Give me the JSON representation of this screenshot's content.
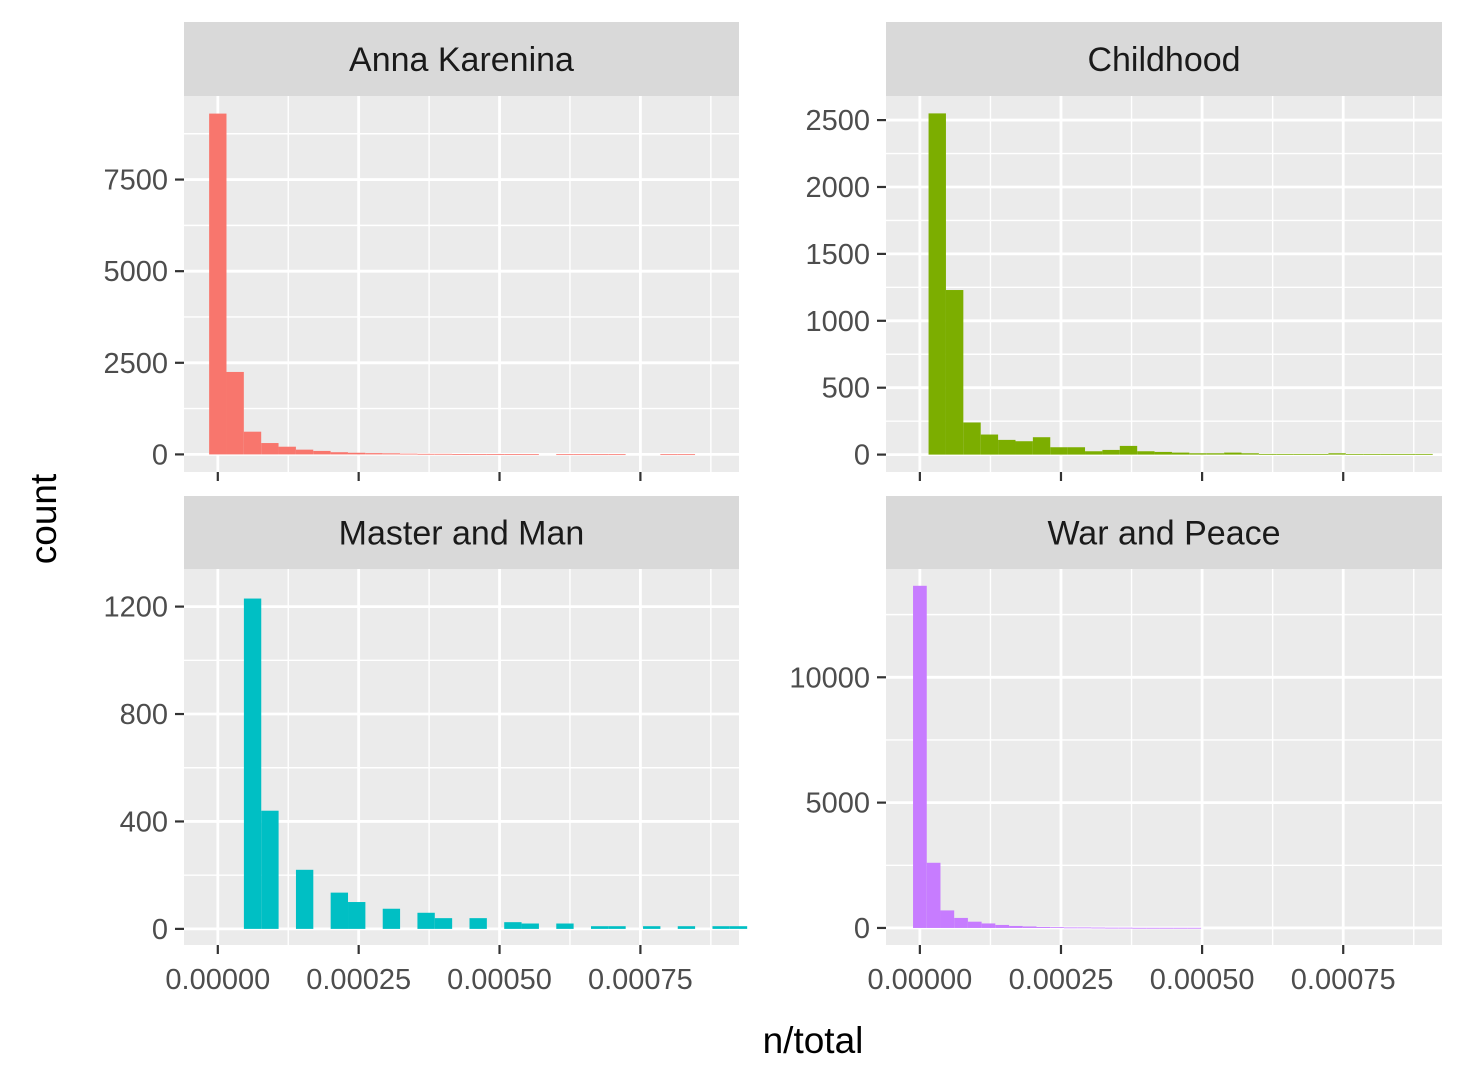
{
  "chart_data": {
    "type": "bar",
    "subtype": "faceted-histogram",
    "xlabel": "n/total",
    "ylabel": "count",
    "x_tick_labels": [
      "0.00000",
      "0.00025",
      "0.00050",
      "0.00075"
    ],
    "x_ticks": [
      0,
      0.00025,
      0.0005,
      0.00075
    ],
    "xlim": [
      -6e-05,
      0.000925
    ],
    "facet_layout": "2x2",
    "grid": true,
    "legend": "none",
    "panels": [
      {
        "name": "Anna Karenina",
        "color": "#F8766D",
        "bin_width": 3.08e-05,
        "bins_start": -1.54e-05,
        "counts": [
          9300,
          2250,
          620,
          310,
          210,
          130,
          95,
          60,
          45,
          35,
          30,
          20,
          15,
          15,
          10,
          10,
          10,
          10,
          5,
          0,
          5,
          5,
          5,
          5,
          0,
          0,
          5,
          5,
          0,
          0,
          0
        ],
        "ylim": [
          -480,
          9780
        ],
        "y_ticks": [
          0,
          2500,
          5000,
          7500
        ],
        "y_tick_labels": [
          "0",
          "2500",
          "5000",
          "7500"
        ]
      },
      {
        "name": "Childhood",
        "color": "#7CAE00",
        "bin_width": 3.08e-05,
        "bins_start": 1.54e-05,
        "counts": [
          2550,
          1230,
          240,
          150,
          110,
          100,
          130,
          55,
          55,
          25,
          35,
          65,
          25,
          20,
          15,
          10,
          10,
          15,
          10,
          5,
          5,
          5,
          5,
          10,
          5,
          5,
          5,
          5,
          5,
          0,
          0
        ],
        "ylim": [
          -130,
          2680
        ],
        "y_ticks": [
          0,
          500,
          1000,
          1500,
          2000,
          2500
        ],
        "y_tick_labels": [
          "0",
          "500",
          "1000",
          "1500",
          "2000",
          "2500"
        ]
      },
      {
        "name": "Master and Man",
        "color": "#00BFC4",
        "bin_width": 3.08e-05,
        "bins_start": 4.63e-05,
        "counts": [
          1230,
          440,
          0,
          220,
          0,
          135,
          100,
          0,
          75,
          0,
          60,
          40,
          0,
          40,
          0,
          25,
          20,
          0,
          20,
          0,
          10,
          10,
          0,
          10,
          0,
          10,
          0,
          10,
          10
        ],
        "ylim": [
          -60,
          1340
        ],
        "y_ticks": [
          0,
          400,
          800,
          1200
        ],
        "y_tick_labels": [
          "0",
          "400",
          "800",
          "1200"
        ]
      },
      {
        "name": "War and Peace",
        "color": "#C77CFF",
        "bin_width": 2.43e-05,
        "bins_start": -1.21e-05,
        "counts": [
          13650,
          2600,
          700,
          400,
          250,
          180,
          120,
          80,
          60,
          40,
          30,
          20,
          20,
          15,
          10,
          10,
          5,
          5,
          5,
          5,
          5
        ],
        "ylim": [
          -680,
          14320
        ],
        "y_ticks": [
          0,
          5000,
          10000
        ],
        "y_tick_labels": [
          "0",
          "5000",
          "10000"
        ]
      }
    ]
  }
}
